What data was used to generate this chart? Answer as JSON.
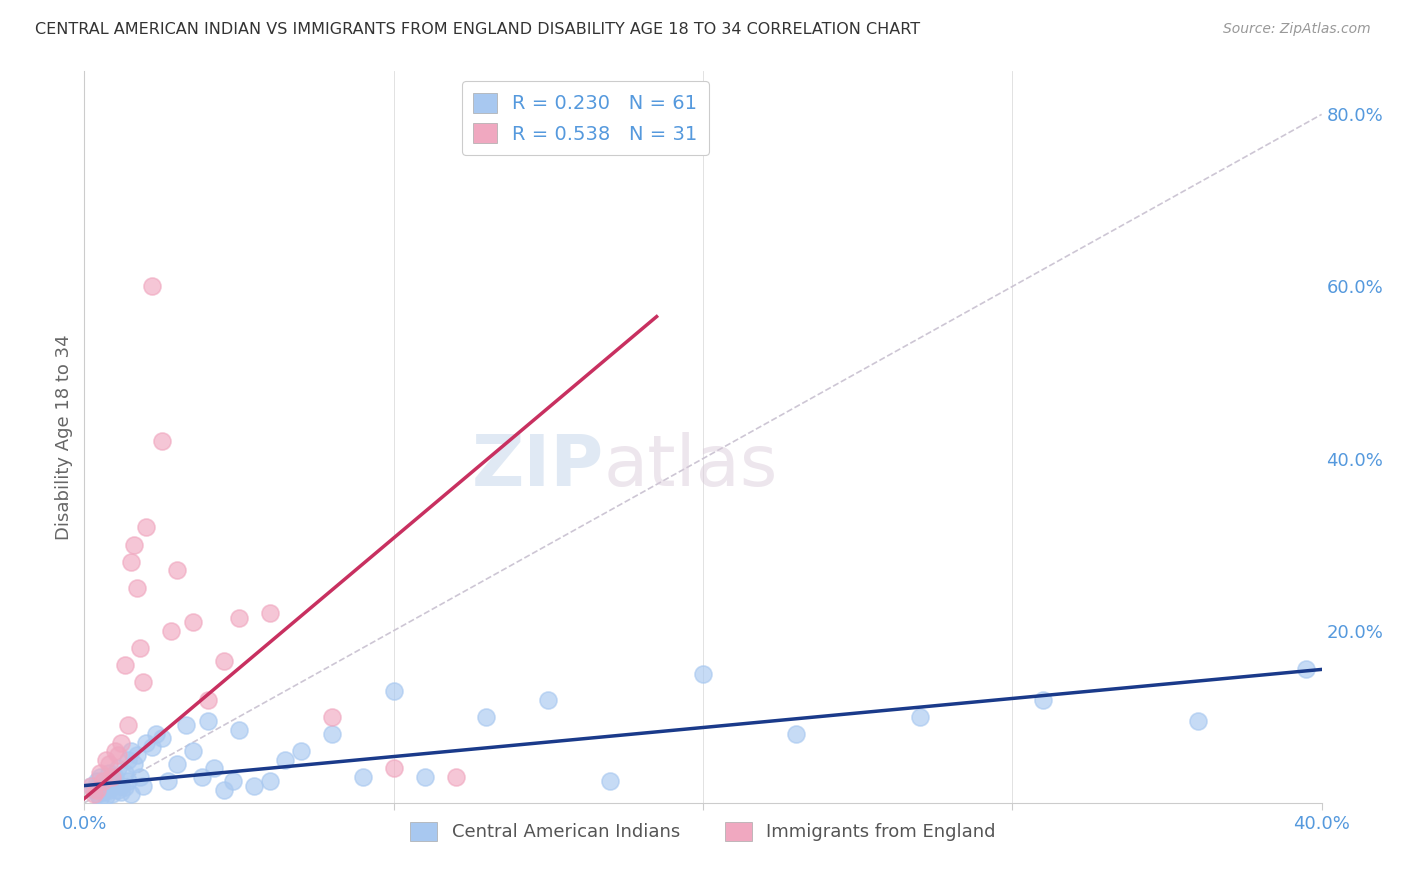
{
  "title": "CENTRAL AMERICAN INDIAN VS IMMIGRANTS FROM ENGLAND DISABILITY AGE 18 TO 34 CORRELATION CHART",
  "source": "Source: ZipAtlas.com",
  "ylabel": "Disability Age 18 to 34",
  "R_blue": 0.23,
  "N_blue": 61,
  "R_pink": 0.538,
  "N_pink": 31,
  "legend_label_blue": "Central American Indians",
  "legend_label_pink": "Immigrants from England",
  "xlim": [
    0.0,
    0.4
  ],
  "ylim": [
    0.0,
    0.85
  ],
  "x_ticks": [
    0.0,
    0.1,
    0.2,
    0.3,
    0.4
  ],
  "y_ticks_right": [
    0.0,
    0.2,
    0.4,
    0.6,
    0.8
  ],
  "y_tick_labels_right": [
    "",
    "20.0%",
    "40.0%",
    "60.0%",
    "80.0%"
  ],
  "blue_scatter_color": "#A8C8F0",
  "pink_scatter_color": "#F0A8C0",
  "blue_line_color": "#1A3A8A",
  "pink_line_color": "#C83060",
  "diag_line_color": "#C8C0D0",
  "title_color": "#333333",
  "axis_tick_color": "#5599DD",
  "background_color": "#FFFFFF",
  "grid_color": "#E8EEF8",
  "blue_scatter_x": [
    0.002,
    0.003,
    0.004,
    0.004,
    0.005,
    0.005,
    0.006,
    0.006,
    0.007,
    0.007,
    0.008,
    0.008,
    0.009,
    0.009,
    0.01,
    0.01,
    0.011,
    0.011,
    0.012,
    0.012,
    0.013,
    0.013,
    0.014,
    0.014,
    0.015,
    0.015,
    0.016,
    0.017,
    0.018,
    0.019,
    0.02,
    0.022,
    0.023,
    0.025,
    0.027,
    0.03,
    0.033,
    0.035,
    0.038,
    0.04,
    0.042,
    0.045,
    0.048,
    0.05,
    0.055,
    0.06,
    0.065,
    0.07,
    0.08,
    0.09,
    0.1,
    0.11,
    0.13,
    0.15,
    0.17,
    0.2,
    0.23,
    0.27,
    0.31,
    0.36,
    0.395
  ],
  "blue_scatter_y": [
    0.02,
    0.015,
    0.025,
    0.01,
    0.03,
    0.005,
    0.018,
    0.012,
    0.022,
    0.008,
    0.035,
    0.015,
    0.02,
    0.01,
    0.025,
    0.03,
    0.015,
    0.04,
    0.02,
    0.012,
    0.018,
    0.035,
    0.05,
    0.025,
    0.06,
    0.01,
    0.045,
    0.055,
    0.03,
    0.02,
    0.07,
    0.065,
    0.08,
    0.075,
    0.025,
    0.045,
    0.09,
    0.06,
    0.03,
    0.095,
    0.04,
    0.015,
    0.025,
    0.085,
    0.02,
    0.025,
    0.05,
    0.06,
    0.08,
    0.03,
    0.13,
    0.03,
    0.1,
    0.12,
    0.025,
    0.15,
    0.08,
    0.1,
    0.12,
    0.095,
    0.155
  ],
  "pink_scatter_x": [
    0.002,
    0.003,
    0.004,
    0.005,
    0.006,
    0.007,
    0.008,
    0.009,
    0.01,
    0.011,
    0.012,
    0.013,
    0.014,
    0.015,
    0.016,
    0.017,
    0.018,
    0.019,
    0.02,
    0.022,
    0.025,
    0.028,
    0.03,
    0.035,
    0.04,
    0.045,
    0.05,
    0.06,
    0.08,
    0.1,
    0.12
  ],
  "pink_scatter_y": [
    0.02,
    0.01,
    0.015,
    0.035,
    0.025,
    0.05,
    0.045,
    0.03,
    0.06,
    0.055,
    0.07,
    0.16,
    0.09,
    0.28,
    0.3,
    0.25,
    0.18,
    0.14,
    0.32,
    0.6,
    0.42,
    0.2,
    0.27,
    0.21,
    0.12,
    0.165,
    0.215,
    0.22,
    0.1,
    0.04,
    0.03
  ]
}
